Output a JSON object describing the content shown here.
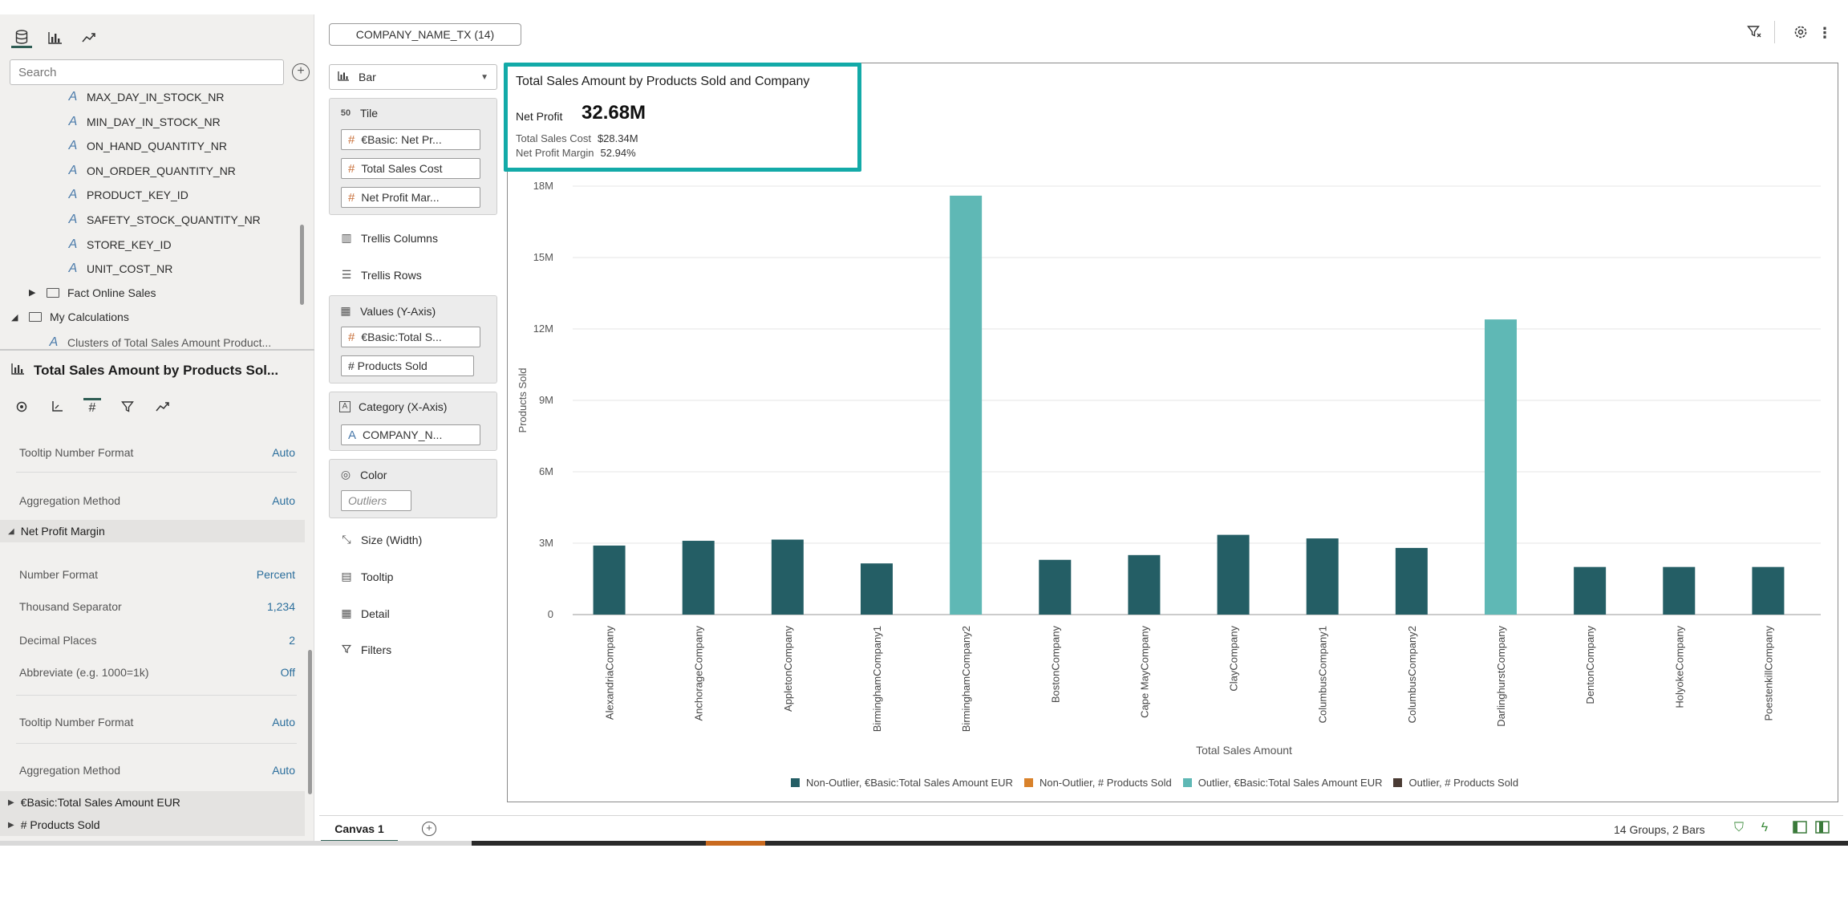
{
  "left_panel": {
    "tabs": [
      {
        "icon": "database-icon"
      },
      {
        "icon": "bar-chart-icon"
      },
      {
        "icon": "trend-icon"
      }
    ],
    "search_placeholder": "Search",
    "tree": [
      {
        "label": "MAX_DAY_IN_STOCK_NR",
        "kind": "attribute"
      },
      {
        "label": "MIN_DAY_IN_STOCK_NR",
        "kind": "attribute"
      },
      {
        "label": "ON_HAND_QUANTITY_NR",
        "kind": "attribute"
      },
      {
        "label": "ON_ORDER_QUANTITY_NR",
        "kind": "attribute"
      },
      {
        "label": "PRODUCT_KEY_ID",
        "kind": "attribute"
      },
      {
        "label": "SAFETY_STOCK_QUANTITY_NR",
        "kind": "attribute"
      },
      {
        "label": "STORE_KEY_ID",
        "kind": "attribute"
      },
      {
        "label": "UNIT_COST_NR",
        "kind": "attribute"
      },
      {
        "label": "Fact Online Sales",
        "kind": "folder-collapsed"
      },
      {
        "label": "My Calculations",
        "kind": "folder-expanded"
      },
      {
        "label": "Clusters of Total Sales Amount Product...",
        "kind": "attribute"
      }
    ]
  },
  "properties": {
    "title": "Total Sales Amount by Products Sol...",
    "rows_top": [
      {
        "label": "Tooltip Number Format",
        "value": "Auto"
      },
      {
        "label": "Aggregation Method",
        "value": "Auto"
      }
    ],
    "section_net_profit": "Net Profit Margin",
    "rows_net_profit": [
      {
        "label": "Number Format",
        "value": "Percent"
      },
      {
        "label": "Thousand Separator",
        "value": "1,234"
      },
      {
        "label": "Decimal Places",
        "value": "2"
      },
      {
        "label": "Abbreviate (e.g. 1000=1k)",
        "value": "Off"
      },
      {
        "label": "Tooltip Number Format",
        "value": "Auto"
      },
      {
        "label": "Aggregation Method",
        "value": "Auto"
      }
    ],
    "section_basic": "€Basic:Total Sales Amount EUR",
    "section_products": "# Products Sold"
  },
  "grammar": {
    "filter_pill": "COMPANY_NAME_TX (14)",
    "viz_type": "Bar",
    "tile_label": "Tile",
    "tile_pills": [
      "€Basic: Net Pr...",
      "Total Sales Cost",
      "Net Profit Mar..."
    ],
    "trellis_columns": "Trellis Columns",
    "trellis_rows": "Trellis Rows",
    "values_label": "Values (Y-Axis)",
    "values_pills": [
      "€Basic:Total S...",
      "# Products Sold"
    ],
    "category_label": "Category (X-Axis)",
    "category_pills": [
      "COMPANY_N..."
    ],
    "color_label": "Color",
    "color_pill": "Outliers",
    "size_label": "Size (Width)",
    "tooltip_label": "Tooltip",
    "detail_label": "Detail",
    "filters_label": "Filters"
  },
  "tile": {
    "title": "Total Sales Amount by Products Sold and Company",
    "net_profit_label": "Net Profit",
    "net_profit_value": "32.68M",
    "cost_label": "Total Sales Cost",
    "cost_value": "$28.34M",
    "margin_label": "Net Profit Margin",
    "margin_value": "52.94%"
  },
  "chart_data": {
    "type": "bar",
    "xlabel": "Total Sales Amount",
    "ylabel": "Products Sold",
    "ylim": [
      0,
      18000000
    ],
    "yticks": [
      "0",
      "3M",
      "6M",
      "9M",
      "12M",
      "15M",
      "18M"
    ],
    "grid": true,
    "legend_position": "bottom",
    "categories": [
      "AlexandriaCompany",
      "AnchorageCompany",
      "AppletonCompany",
      "BirminghamCompany1",
      "BirminghamCompany2",
      "BostonCompany",
      "Cape MayCompany",
      "ClayCompany",
      "ColumbusCompany1",
      "ColumbusCompany2",
      "DarlinghurstCompany",
      "DentonCompany",
      "HolyokeCompany",
      "PoestenkillCompany"
    ],
    "values": [
      2900000,
      3100000,
      3150000,
      2150000,
      17600000,
      2300000,
      2500000,
      3350000,
      3200000,
      2800000,
      12400000,
      2000000,
      2000000,
      2000000
    ],
    "outlier": [
      false,
      false,
      false,
      false,
      true,
      false,
      false,
      false,
      false,
      false,
      true,
      false,
      false,
      false
    ],
    "legend": [
      {
        "label": "Non-Outlier, €Basic:Total Sales Amount EUR",
        "color": "#245e65"
      },
      {
        "label": "Non-Outlier, # Products Sold",
        "color": "#d9822b"
      },
      {
        "label": "Outlier, €Basic:Total Sales Amount EUR",
        "color": "#5fb8b5"
      },
      {
        "label": "Outlier, # Products Sold",
        "color": "#4a3b34"
      }
    ]
  },
  "bottom_bar": {
    "canvas_tab": "Canvas 1",
    "status": "14 Groups, 2 Bars"
  },
  "colors": {
    "accent": "#13aaa8",
    "non_outlier": "#245e65",
    "outlier": "#5fb8b5"
  }
}
